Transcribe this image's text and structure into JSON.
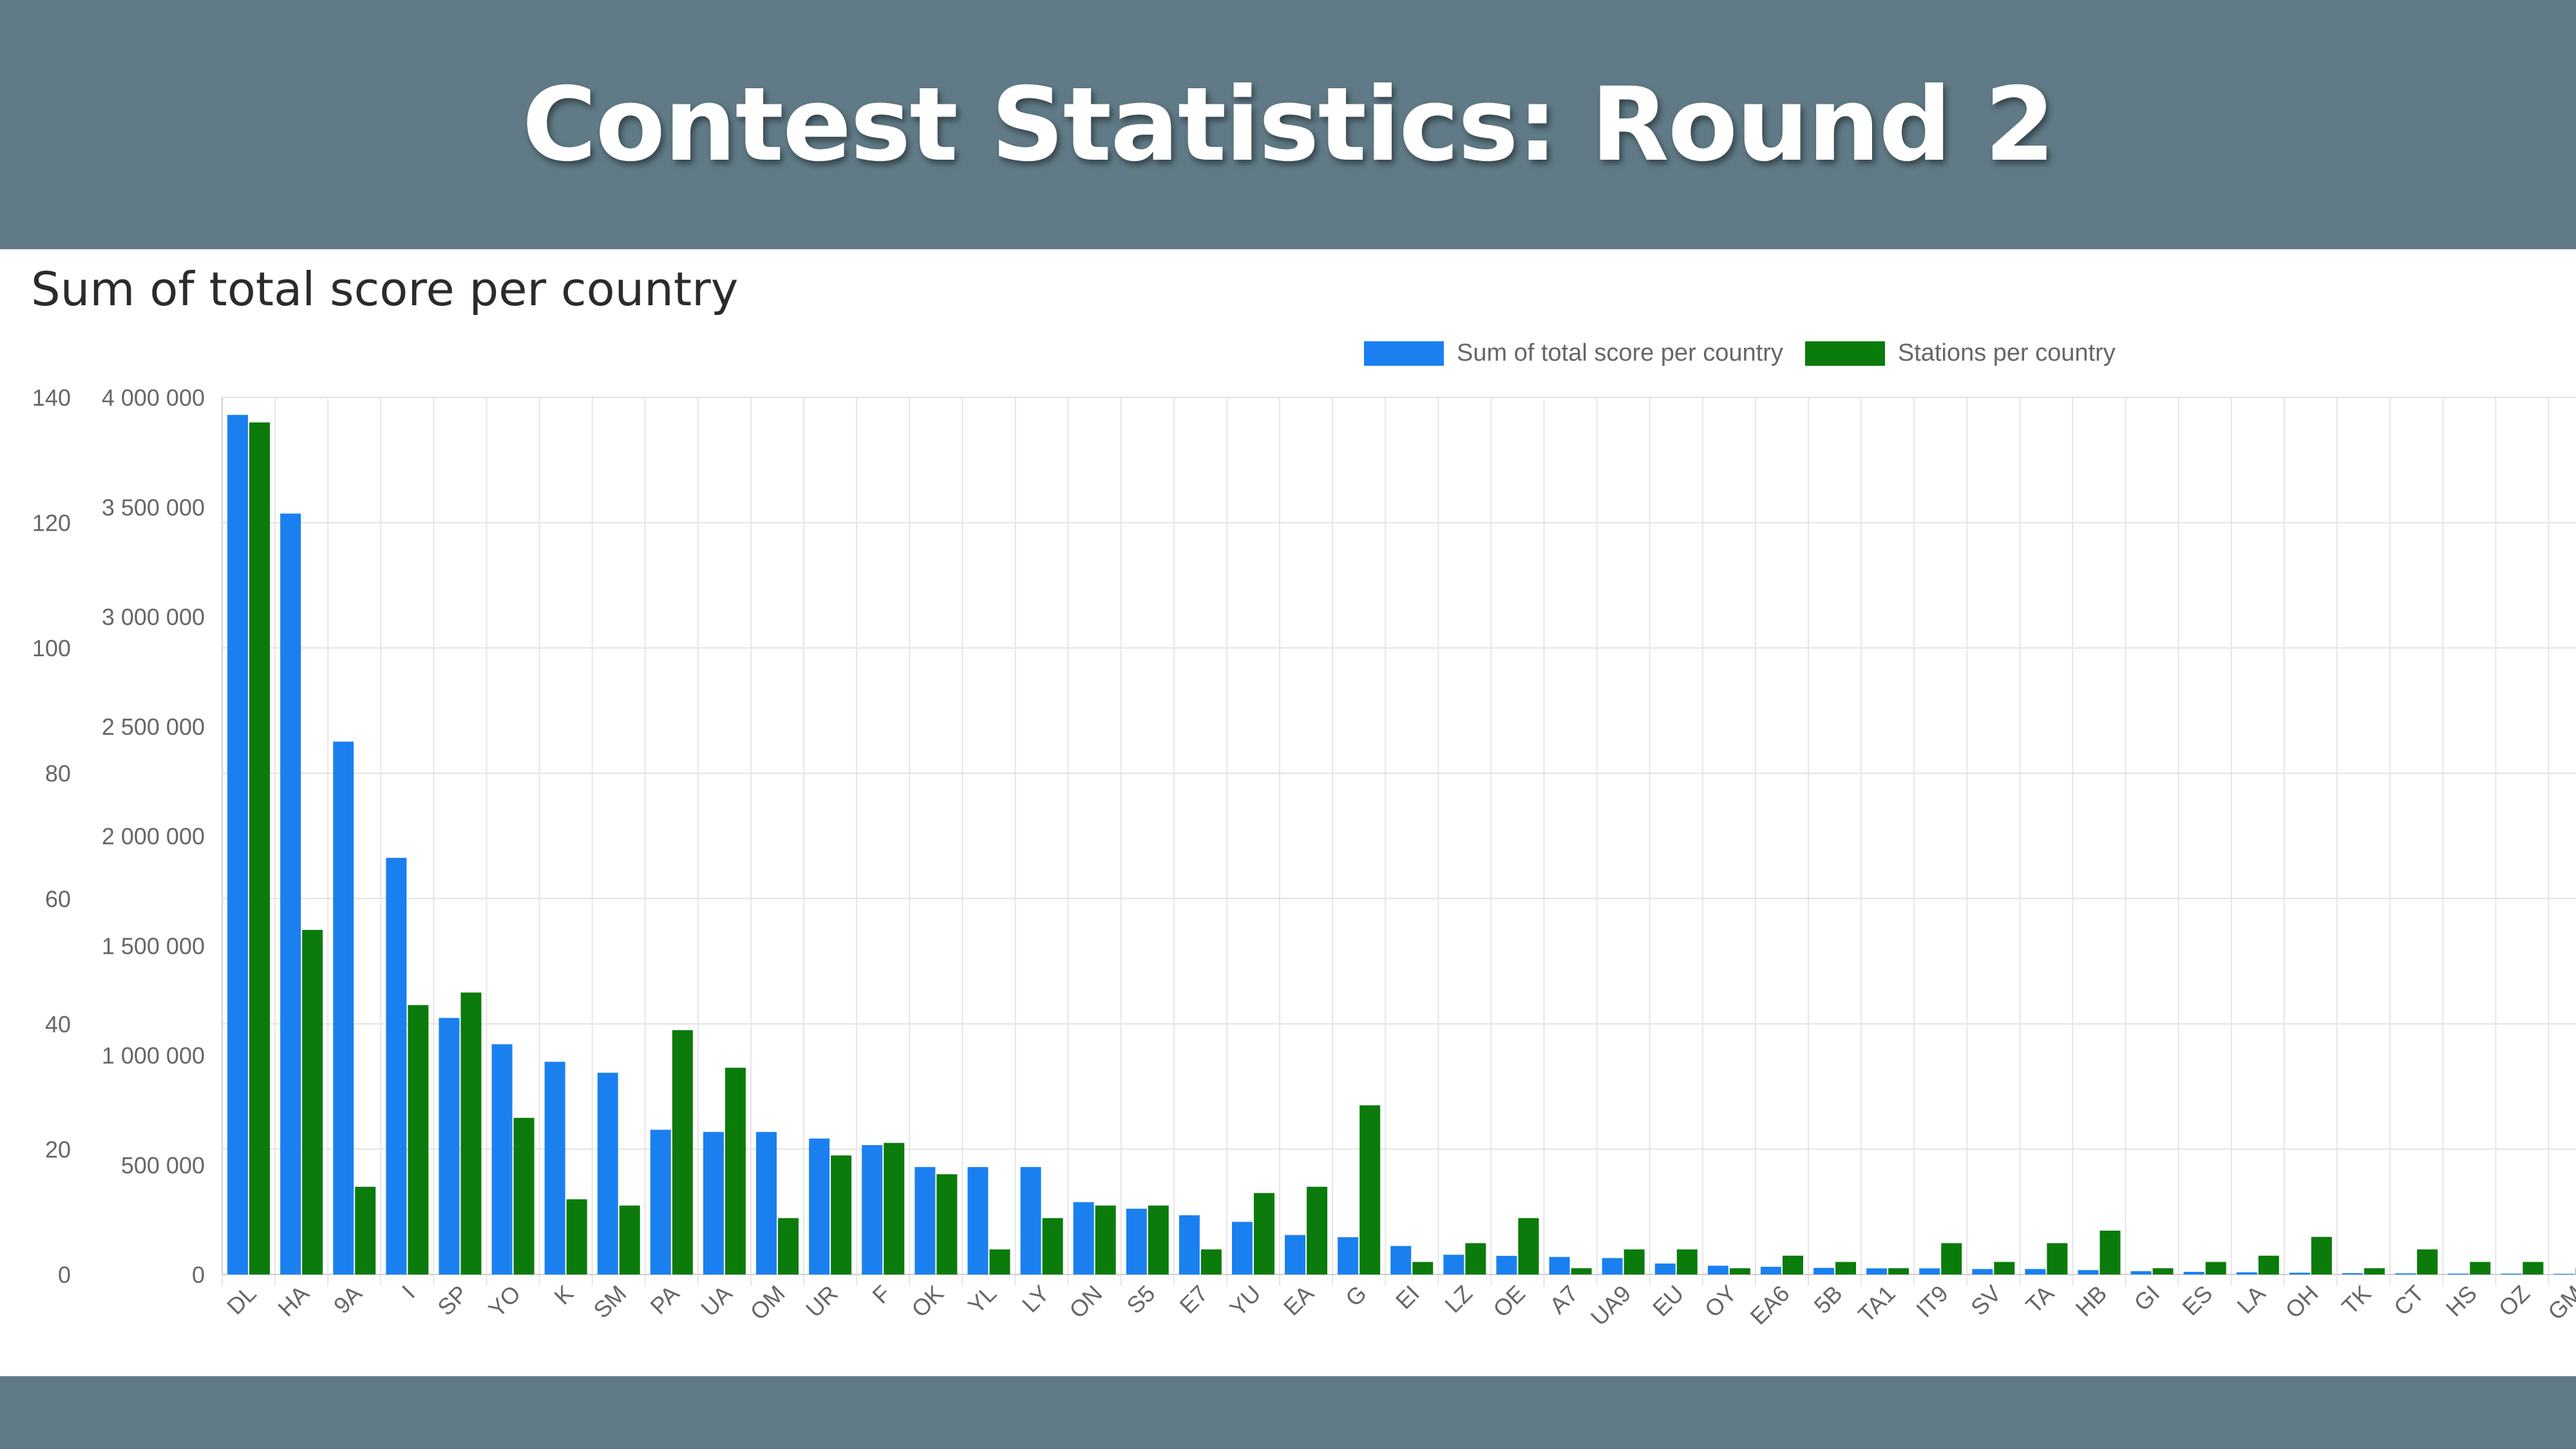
{
  "header": {
    "title": "Contest Statistics: Round 2"
  },
  "chart_data": {
    "type": "bar",
    "title": "Sum of total score per country",
    "categories": [
      "DL",
      "HA",
      "9A",
      "I",
      "SP",
      "YO",
      "K",
      "SM",
      "PA",
      "UA",
      "OM",
      "UR",
      "F",
      "OK",
      "YL",
      "LY",
      "ON",
      "S5",
      "E7",
      "YU",
      "EA",
      "G",
      "EI",
      "LZ",
      "OE",
      "A7",
      "UA9",
      "EU",
      "OY",
      "EA6",
      "5B",
      "TA1",
      "IT9",
      "SV",
      "TA",
      "HB",
      "GI",
      "ES",
      "LA",
      "OH",
      "TK",
      "CT",
      "HS",
      "OZ",
      "GM"
    ],
    "series": [
      {
        "name": "Sum of total score per country",
        "color": "#1a80f0",
        "axis": "right",
        "values": [
          3920000,
          3470000,
          2430000,
          1900000,
          1170000,
          1050000,
          970000,
          920000,
          660000,
          650000,
          650000,
          620000,
          590000,
          490000,
          490000,
          490000,
          330000,
          300000,
          270000,
          240000,
          180000,
          170000,
          130000,
          90000,
          85000,
          80000,
          75000,
          50000,
          40000,
          35000,
          30000,
          28000,
          28000,
          25000,
          25000,
          20000,
          15000,
          12000,
          10000,
          8000,
          6000,
          5000,
          4000,
          4000,
          3000
        ]
      },
      {
        "name": "Stations per country",
        "color": "#0b7b0b",
        "axis": "left",
        "values": [
          136,
          55,
          14,
          43,
          45,
          25,
          12,
          11,
          39,
          33,
          9,
          19,
          21,
          16,
          4,
          9,
          11,
          11,
          4,
          13,
          14,
          27,
          2,
          5,
          9,
          1,
          4,
          4,
          1,
          3,
          2,
          1,
          5,
          2,
          5,
          7,
          1,
          2,
          3,
          6,
          1,
          4,
          2,
          2,
          1
        ]
      }
    ],
    "y_left": {
      "ylim": [
        0,
        140
      ],
      "ticks": [
        "0",
        "20",
        "40",
        "60",
        "80",
        "100",
        "120",
        "140"
      ]
    },
    "y_right": {
      "ylim": [
        0,
        4000000
      ],
      "ticks": [
        "0",
        "500 000",
        "1 000 000",
        "1 500 000",
        "2 000 000",
        "2 500 000",
        "3 000 000",
        "3 500 000",
        "4 000 000"
      ]
    },
    "grid": true,
    "legend_position": "top"
  }
}
